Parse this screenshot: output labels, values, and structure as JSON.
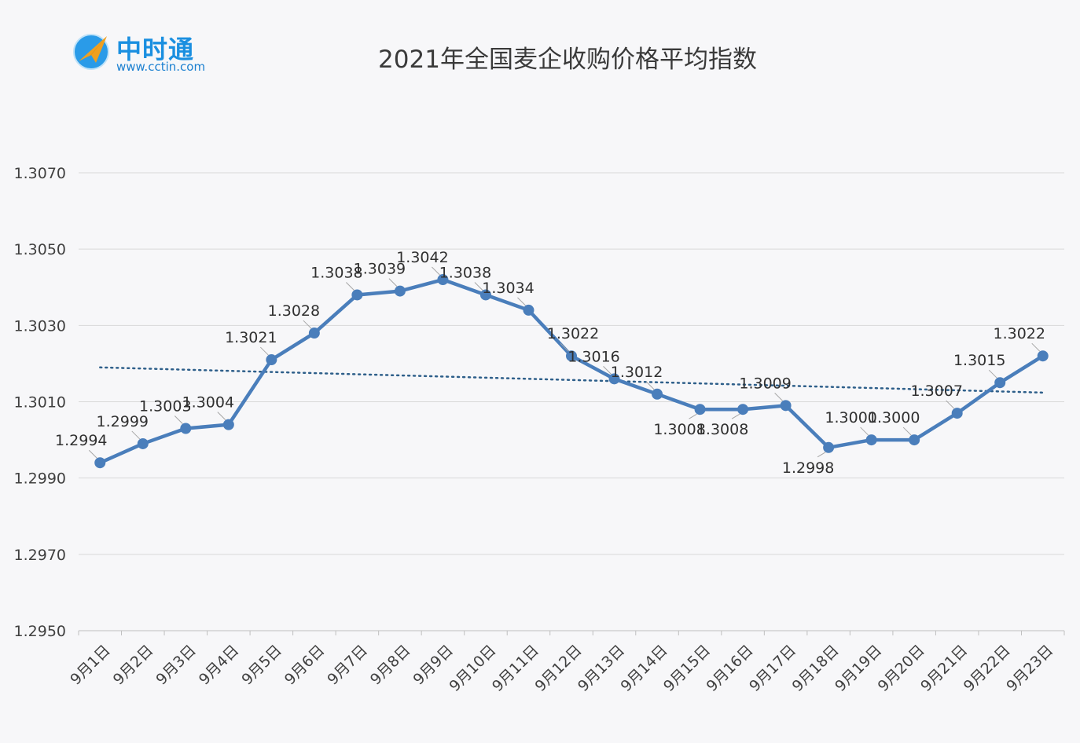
{
  "logo": {
    "name": "中时通",
    "url": "www.cctin.com"
  },
  "chart_data": {
    "type": "line",
    "title": "2021年全国麦企收购价格平均指数",
    "categories": [
      "9月1日",
      "9月2日",
      "9月3日",
      "9月4日",
      "9月5日",
      "9月6日",
      "9月7日",
      "9月8日",
      "9月9日",
      "9月10日",
      "9月11日",
      "9月12日",
      "9月13日",
      "9月14日",
      "9月15日",
      "9月16日",
      "9月17日",
      "9月18日",
      "9月19日",
      "9月20日",
      "9月21日",
      "9月22日",
      "9月23日"
    ],
    "series": [
      {
        "values": [
          1.2994,
          1.2999,
          1.3003,
          1.3004,
          1.3021,
          1.3028,
          1.3038,
          1.3039,
          1.3042,
          1.3038,
          1.3034,
          1.3022,
          1.3016,
          1.3012,
          1.3008,
          1.3008,
          1.3009,
          1.2998,
          1.3,
          1.3,
          1.3007,
          1.3015,
          1.3022
        ],
        "color": "#4a7ebb",
        "marker": "circle",
        "line_style": "solid"
      }
    ],
    "data_labels": [
      "1.2994",
      "1.2999",
      "1.3003",
      "1.3004",
      "1.3021",
      "1.3028",
      "1.3038",
      "1.3039",
      "1.3042",
      "1.3038",
      "1.3034",
      "1.3022",
      "1.3016",
      "1.3012",
      "1.3008",
      "1.3008",
      "1.3009",
      "1.2998",
      "1.3000",
      "1.3000",
      "1.3007",
      "1.3015",
      "1.3022"
    ],
    "trendline": {
      "type": "linear",
      "style": "dotted",
      "color": "#2e5f8a",
      "start": 1.3019,
      "end": 1.30124
    },
    "ylim": [
      1.295,
      1.307
    ],
    "yticks": [
      "1.2950",
      "1.2970",
      "1.2990",
      "1.3010",
      "1.3030",
      "1.3050",
      "1.3070"
    ],
    "ytick_values": [
      1.295,
      1.297,
      1.299,
      1.301,
      1.303,
      1.305,
      1.307
    ],
    "grid": true,
    "legend": "none"
  }
}
